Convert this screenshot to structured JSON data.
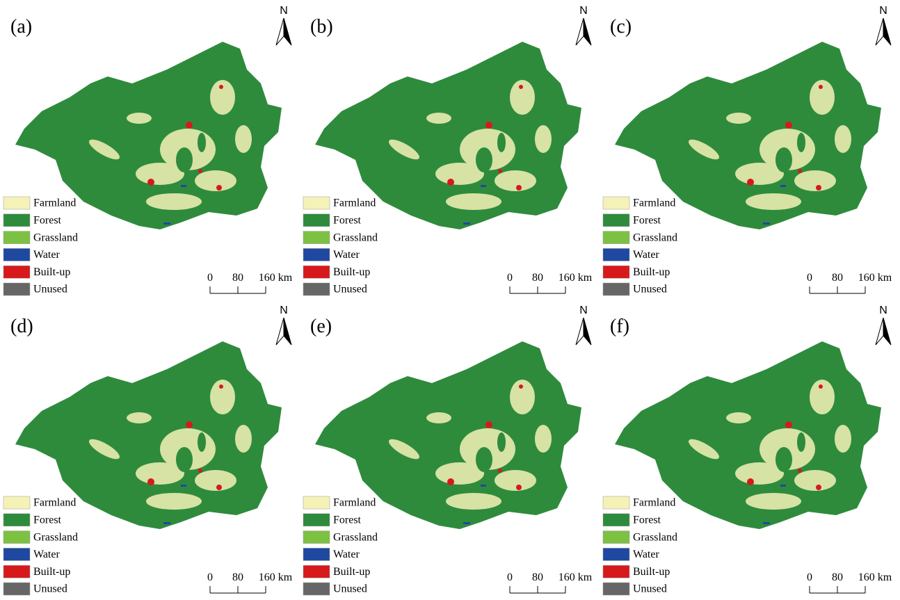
{
  "panels": [
    {
      "label": "(a)"
    },
    {
      "label": "(b)"
    },
    {
      "label": "(c)"
    },
    {
      "label": "(d)"
    },
    {
      "label": "(e)"
    },
    {
      "label": "(f)"
    }
  ],
  "north": "N",
  "legend": [
    {
      "name": "Farmland",
      "color": "#f5f2b8"
    },
    {
      "name": "Forest",
      "color": "#2e8b3c"
    },
    {
      "name": "Grassland",
      "color": "#7dc142"
    },
    {
      "name": "Water",
      "color": "#1f48a0"
    },
    {
      "name": "Built-up",
      "color": "#d7191c"
    },
    {
      "name": "Unused",
      "color": "#666666"
    }
  ],
  "scale_bar": [
    "0",
    "80",
    "160 km"
  ]
}
